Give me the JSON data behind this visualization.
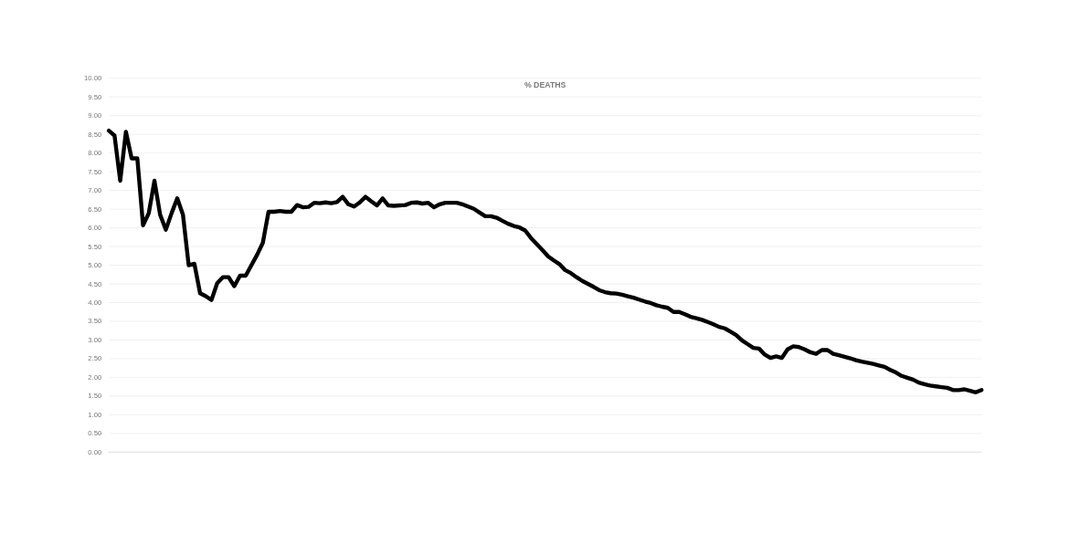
{
  "chart_data": {
    "type": "line",
    "title": "% DEATHS",
    "categories": [
      null,
      null,
      null,
      null,
      null,
      null,
      null,
      null,
      null,
      null,
      null,
      null,
      null,
      null,
      null,
      null,
      null,
      null,
      null,
      null,
      null,
      null,
      null,
      null,
      null,
      null,
      null,
      null,
      null,
      null,
      null,
      null,
      null,
      null,
      null,
      null,
      null,
      null,
      null,
      null,
      null,
      null,
      null,
      null,
      null,
      null,
      null,
      null,
      null,
      null,
      null,
      null,
      null,
      null,
      null,
      null,
      null,
      null,
      null,
      null,
      null,
      null,
      null,
      null,
      null,
      null,
      null,
      null,
      null,
      null,
      null,
      null,
      null,
      null,
      null,
      null,
      null,
      null,
      null,
      null,
      null,
      null,
      null,
      null,
      null,
      null,
      null,
      null,
      null,
      null,
      null,
      null,
      null,
      null,
      null,
      null,
      null,
      null,
      null,
      null,
      null,
      null,
      null,
      null,
      null,
      null,
      null,
      null,
      null,
      null,
      null,
      null,
      null,
      null,
      null,
      null,
      null,
      null,
      null,
      null,
      null,
      null,
      null,
      null,
      null,
      null,
      null,
      null,
      null,
      null,
      null,
      null,
      null,
      null,
      null,
      null,
      null,
      null,
      null,
      null,
      null,
      null,
      null,
      null,
      null,
      null,
      null,
      null,
      null,
      null,
      null,
      null,
      null,
      null
    ],
    "series": [
      {
        "color": "#000000",
        "values": [
          8.6,
          8.47,
          7.26,
          8.57,
          7.86,
          7.86,
          6.07,
          6.39,
          7.26,
          6.35,
          5.95,
          6.39,
          6.79,
          6.35,
          5.0,
          5.04,
          4.25,
          4.17,
          4.07,
          4.52,
          4.68,
          4.68,
          4.44,
          4.72,
          4.72,
          5.0,
          5.28,
          5.6,
          6.43,
          6.43,
          6.45,
          6.43,
          6.43,
          6.61,
          6.55,
          6.56,
          6.67,
          6.66,
          6.68,
          6.66,
          6.69,
          6.83,
          6.63,
          6.57,
          6.68,
          6.83,
          6.71,
          6.6,
          6.79,
          6.6,
          6.59,
          6.6,
          6.61,
          6.67,
          6.68,
          6.65,
          6.67,
          6.55,
          6.63,
          6.67,
          6.67,
          6.67,
          6.63,
          6.57,
          6.51,
          6.41,
          6.31,
          6.31,
          6.27,
          6.19,
          6.11,
          6.05,
          6.01,
          5.93,
          5.73,
          5.57,
          5.41,
          5.24,
          5.13,
          5.03,
          4.87,
          4.79,
          4.68,
          4.58,
          4.5,
          4.42,
          4.33,
          4.28,
          4.25,
          4.24,
          4.21,
          4.17,
          4.13,
          4.08,
          4.03,
          3.99,
          3.93,
          3.89,
          3.86,
          3.75,
          3.75,
          3.69,
          3.62,
          3.58,
          3.54,
          3.48,
          3.42,
          3.35,
          3.31,
          3.22,
          3.13,
          2.99,
          2.89,
          2.79,
          2.77,
          2.61,
          2.52,
          2.56,
          2.52,
          2.75,
          2.83,
          2.81,
          2.75,
          2.67,
          2.63,
          2.73,
          2.73,
          2.63,
          2.59,
          2.55,
          2.51,
          2.46,
          2.42,
          2.39,
          2.36,
          2.32,
          2.28,
          2.2,
          2.13,
          2.04,
          1.99,
          1.94,
          1.86,
          1.82,
          1.78,
          1.76,
          1.74,
          1.72,
          1.66,
          1.66,
          1.68,
          1.64,
          1.6,
          1.66
        ]
      }
    ],
    "ylim": [
      0,
      10
    ],
    "yticks": [
      {
        "value": 0,
        "label": "0.00"
      },
      {
        "value": 0.5,
        "label": "0.50"
      },
      {
        "value": 1,
        "label": "1.00"
      },
      {
        "value": 1.5,
        "label": "1.50"
      },
      {
        "value": 2,
        "label": "2.00"
      },
      {
        "value": 2.5,
        "label": "2.50"
      },
      {
        "value": 3,
        "label": "3.00"
      },
      {
        "value": 3.5,
        "label": "3.50"
      },
      {
        "value": 4,
        "label": "4.00"
      },
      {
        "value": 4.5,
        "label": "4.50"
      },
      {
        "value": 5,
        "label": "5.00"
      },
      {
        "value": 5.5,
        "label": "5.50"
      },
      {
        "value": 6,
        "label": "6.00"
      },
      {
        "value": 6.5,
        "label": "6.50"
      },
      {
        "value": 7,
        "label": "7.00"
      },
      {
        "value": 7.5,
        "label": "7.50"
      },
      {
        "value": 8,
        "label": "8.00"
      },
      {
        "value": 8.5,
        "label": "8.50"
      },
      {
        "value": 9,
        "label": "9.00"
      },
      {
        "value": 9.5,
        "label": "9.50"
      },
      {
        "value": 10,
        "label": "10.00"
      }
    ],
    "grid": "y",
    "marker": "none",
    "line_style": "solid"
  }
}
